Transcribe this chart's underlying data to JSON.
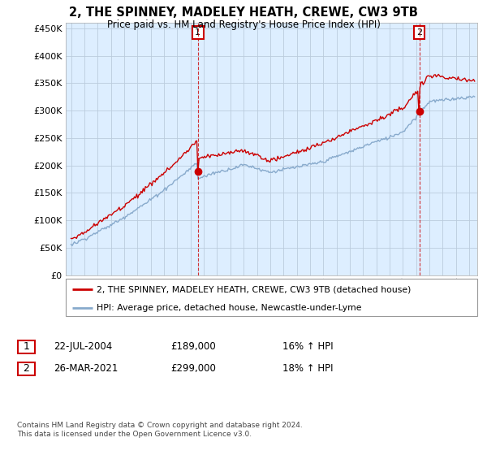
{
  "title": "2, THE SPINNEY, MADELEY HEATH, CREWE, CW3 9TB",
  "subtitle": "Price paid vs. HM Land Registry's House Price Index (HPI)",
  "legend_property": "2, THE SPINNEY, MADELEY HEATH, CREWE, CW3 9TB (detached house)",
  "legend_hpi": "HPI: Average price, detached house, Newcastle-under-Lyme",
  "transaction1_date": "22-JUL-2004",
  "transaction1_price": "£189,000",
  "transaction1_hpi": "16% ↑ HPI",
  "transaction2_date": "26-MAR-2021",
  "transaction2_price": "£299,000",
  "transaction2_hpi": "18% ↑ HPI",
  "footnote": "Contains HM Land Registry data © Crown copyright and database right 2024.\nThis data is licensed under the Open Government Licence v3.0.",
  "property_color": "#cc0000",
  "hpi_color": "#88aacc",
  "dashed_line_color": "#cc0000",
  "chart_bg_color": "#ddeeff",
  "background_color": "#ffffff",
  "ylim": [
    0,
    460000
  ],
  "yticks": [
    0,
    50000,
    100000,
    150000,
    200000,
    250000,
    300000,
    350000,
    400000,
    450000
  ],
  "transaction1_year": 2004.55,
  "transaction1_price_val": 189000,
  "transaction2_year": 2021.23,
  "transaction2_price_val": 299000,
  "xmin": 1995,
  "xmax": 2025.5
}
